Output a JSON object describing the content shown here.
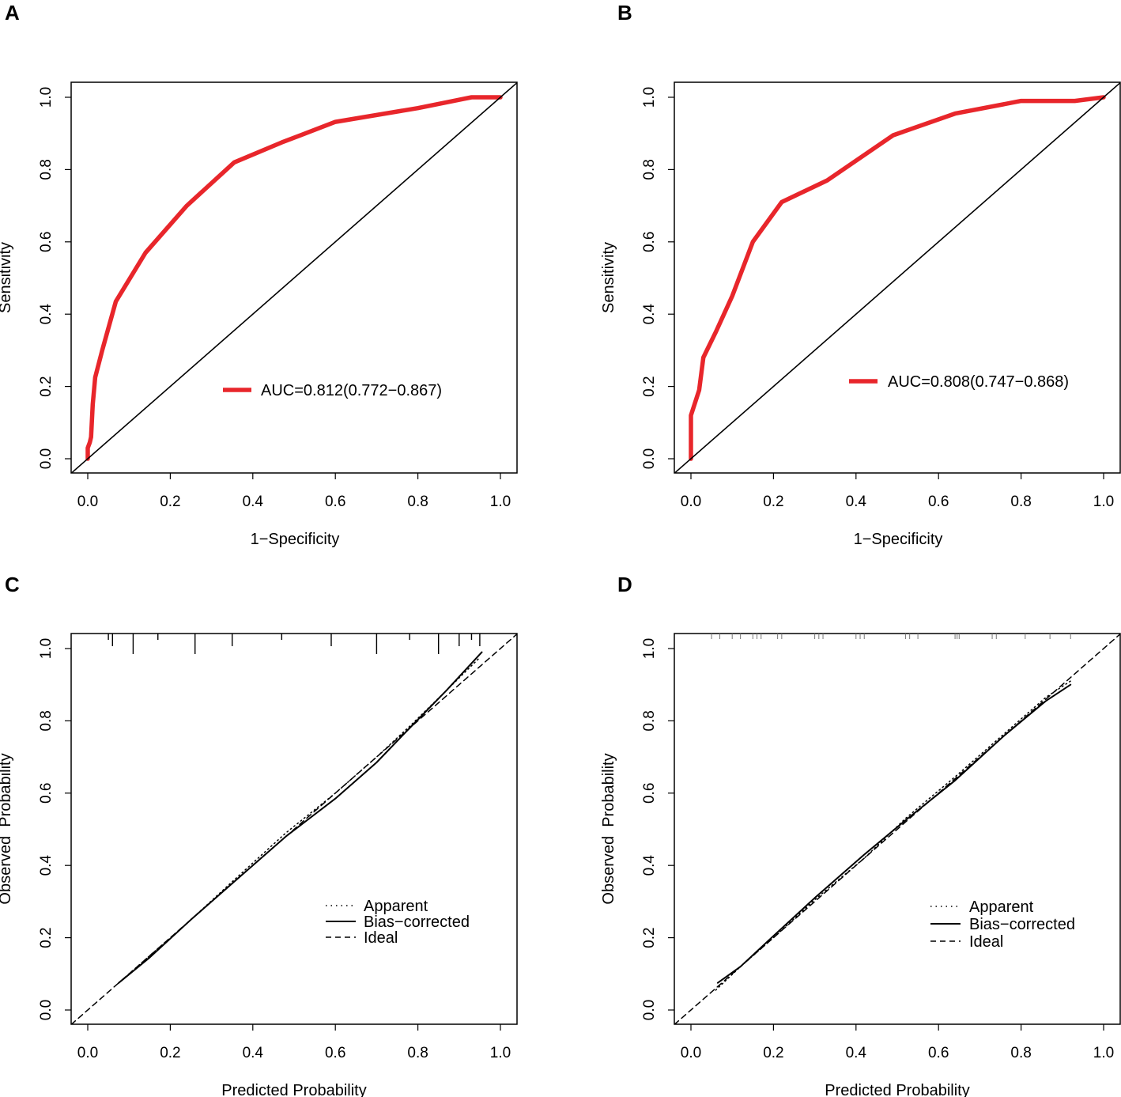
{
  "chart_data": [
    {
      "panel": "A",
      "type": "line",
      "xlabel": "1−Specificity",
      "ylabel": "Sensitivity",
      "xlim": [
        0,
        1
      ],
      "ylim": [
        0,
        1
      ],
      "xticks": [
        "0.0",
        "0.2",
        "0.4",
        "0.6",
        "0.8",
        "1.0"
      ],
      "yticks": [
        "0.0",
        "0.2",
        "0.4",
        "0.6",
        "0.8",
        "1.0"
      ],
      "legend": [
        {
          "label": "AUC=0.812(0.772−0.867)",
          "color": "#e8262b",
          "style": "thick"
        }
      ],
      "series": [
        {
          "name": "ROC",
          "color": "#e8262b",
          "x": [
            0,
            0,
            0.005,
            0.008,
            0.012,
            0.018,
            0.035,
            0.068,
            0.14,
            0.24,
            0.355,
            0.47,
            0.6,
            0.8,
            0.93,
            1.0
          ],
          "y": [
            0,
            0.03,
            0.045,
            0.06,
            0.15,
            0.225,
            0.3,
            0.435,
            0.57,
            0.7,
            0.82,
            0.875,
            0.932,
            0.97,
            1.0,
            1.0
          ]
        },
        {
          "name": "reference",
          "color": "#000000",
          "x": [
            -0.04,
            1.04
          ],
          "y": [
            -0.04,
            1.04
          ]
        }
      ]
    },
    {
      "panel": "B",
      "type": "line",
      "xlabel": "1−Specificity",
      "ylabel": "Sensitivity",
      "xlim": [
        0,
        1
      ],
      "ylim": [
        0,
        1
      ],
      "xticks": [
        "0.0",
        "0.2",
        "0.4",
        "0.6",
        "0.8",
        "1.0"
      ],
      "yticks": [
        "0.0",
        "0.2",
        "0.4",
        "0.6",
        "0.8",
        "1.0"
      ],
      "legend": [
        {
          "label": "AUC=0.808(0.747−0.868)",
          "color": "#e8262b",
          "style": "thick"
        }
      ],
      "series": [
        {
          "name": "ROC",
          "color": "#e8262b",
          "x": [
            0,
            0,
            0.02,
            0.03,
            0.06,
            0.1,
            0.15,
            0.22,
            0.33,
            0.49,
            0.64,
            0.8,
            0.93,
            1.0
          ],
          "y": [
            0,
            0.12,
            0.19,
            0.28,
            0.35,
            0.45,
            0.6,
            0.71,
            0.77,
            0.895,
            0.955,
            0.99,
            0.99,
            1.0
          ]
        },
        {
          "name": "reference",
          "color": "#000000",
          "x": [
            -0.04,
            1.04
          ],
          "y": [
            -0.04,
            1.04
          ]
        }
      ]
    },
    {
      "panel": "C",
      "type": "line",
      "xlabel": "Predicted Probability",
      "ylabel": "Observed  Probability",
      "xlim": [
        0,
        1
      ],
      "ylim": [
        0,
        1
      ],
      "xticks": [
        "0.0",
        "0.2",
        "0.4",
        "0.6",
        "0.8",
        "1.0"
      ],
      "yticks": [
        "0.0",
        "0.2",
        "0.4",
        "0.6",
        "0.8",
        "1.0"
      ],
      "legend": [
        {
          "label": "Apparent",
          "style": "dotted"
        },
        {
          "label": "Bias−corrected",
          "style": "solid"
        },
        {
          "label": "Ideal",
          "style": "dashed"
        }
      ],
      "rug_x": [
        0.05,
        0.06,
        0.11,
        0.17,
        0.26,
        0.35,
        0.47,
        0.59,
        0.7,
        0.78,
        0.85,
        0.9,
        0.93,
        0.95
      ],
      "series": [
        {
          "name": "Apparent",
          "style": "dotted",
          "x": [
            0.075,
            0.15,
            0.25,
            0.35,
            0.48,
            0.6,
            0.7,
            0.78,
            0.87,
            0.95
          ],
          "y": [
            0.075,
            0.15,
            0.25,
            0.355,
            0.49,
            0.6,
            0.7,
            0.785,
            0.885,
            0.975
          ]
        },
        {
          "name": "Bias-corrected",
          "style": "solid",
          "x": [
            0.075,
            0.15,
            0.25,
            0.35,
            0.48,
            0.6,
            0.7,
            0.78,
            0.87,
            0.955
          ],
          "y": [
            0.075,
            0.145,
            0.25,
            0.35,
            0.48,
            0.585,
            0.685,
            0.78,
            0.885,
            0.99
          ]
        },
        {
          "name": "Ideal",
          "style": "dashed",
          "x": [
            -0.04,
            1.04
          ],
          "y": [
            -0.04,
            1.04
          ]
        }
      ]
    },
    {
      "panel": "D",
      "type": "line",
      "xlabel": "Predicted Probability",
      "ylabel": "Observed  Probability",
      "xlim": [
        0,
        1
      ],
      "ylim": [
        0,
        1
      ],
      "xticks": [
        "0.0",
        "0.2",
        "0.4",
        "0.6",
        "0.8",
        "1.0"
      ],
      "yticks": [
        "0.0",
        "0.2",
        "0.4",
        "0.6",
        "0.8",
        "1.0"
      ],
      "legend": [
        {
          "label": "Apparent",
          "style": "dotted"
        },
        {
          "label": "Bias−corrected",
          "style": "solid"
        },
        {
          "label": "Ideal",
          "style": "dashed"
        }
      ],
      "rug_x": [
        0.05,
        0.07,
        0.1,
        0.12,
        0.15,
        0.16,
        0.17,
        0.21,
        0.22,
        0.3,
        0.31,
        0.32,
        0.4,
        0.41,
        0.42,
        0.52,
        0.53,
        0.55,
        0.64,
        0.645,
        0.65,
        0.73,
        0.74,
        0.81,
        0.87,
        0.92
      ],
      "series": [
        {
          "name": "Apparent",
          "style": "dotted",
          "x": [
            0.06,
            0.12,
            0.2,
            0.3,
            0.42,
            0.52,
            0.64,
            0.76,
            0.86,
            0.92
          ],
          "y": [
            0.055,
            0.12,
            0.2,
            0.305,
            0.42,
            0.53,
            0.645,
            0.765,
            0.865,
            0.91
          ]
        },
        {
          "name": "Bias-corrected",
          "style": "solid",
          "x": [
            0.065,
            0.12,
            0.2,
            0.3,
            0.42,
            0.52,
            0.64,
            0.76,
            0.86,
            0.92
          ],
          "y": [
            0.075,
            0.12,
            0.205,
            0.31,
            0.43,
            0.525,
            0.635,
            0.76,
            0.855,
            0.9
          ]
        },
        {
          "name": "Ideal",
          "style": "dashed",
          "x": [
            -0.04,
            1.04
          ],
          "y": [
            -0.04,
            1.04
          ]
        }
      ]
    }
  ]
}
